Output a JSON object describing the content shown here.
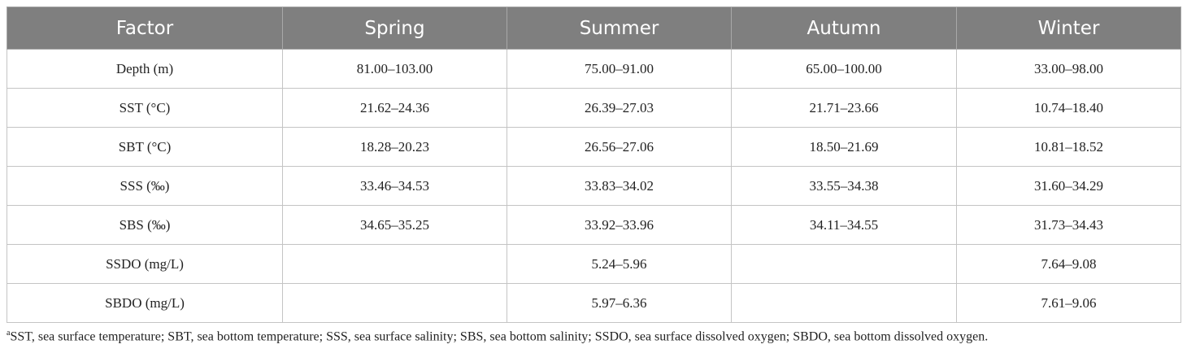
{
  "table": {
    "header": [
      "Factor",
      "Spring",
      "Summer",
      "Autumn",
      "Winter"
    ],
    "rows": [
      [
        "Depth (m)",
        "81.00–103.00",
        "75.00–91.00",
        "65.00–100.00",
        "33.00–98.00"
      ],
      [
        "SST (°C)",
        "21.62–24.36",
        "26.39–27.03",
        "21.71–23.66",
        "10.74–18.40"
      ],
      [
        "SBT (°C)",
        "18.28–20.23",
        "26.56–27.06",
        "18.50–21.69",
        "10.81–18.52"
      ],
      [
        "SSS (‰)",
        "33.46–34.53",
        "33.83–34.02",
        "33.55–34.38",
        "31.60–34.29"
      ],
      [
        "SBS (‰)",
        "34.65–35.25",
        "33.92–33.96",
        "34.11–34.55",
        "31.73–34.43"
      ],
      [
        "SSDO (mg/L)",
        null,
        "5.24–5.96",
        null,
        "7.64–9.08"
      ],
      [
        "SBDO (mg/L)",
        null,
        "5.97–6.36",
        null,
        "7.61–9.06"
      ]
    ]
  },
  "footnote": {
    "marker": "a",
    "text": "SST, sea surface temperature; SBT, sea bottom temperature; SSS, sea surface salinity; SBS, sea bottom salinity; SSDO, sea surface dissolved oxygen; SBDO, sea bottom dissolved oxygen."
  }
}
